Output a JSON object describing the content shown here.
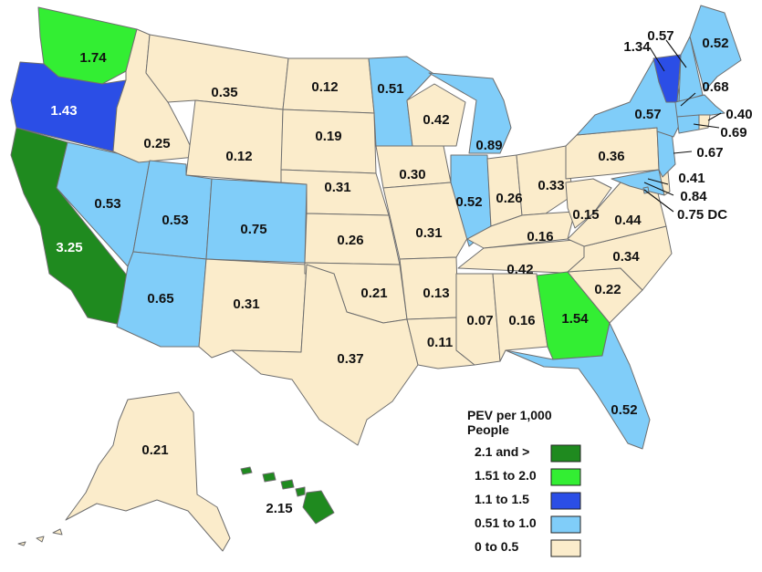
{
  "colors": {
    "ge_2_1": "#1f8a1f",
    "r151_200": "#33ee33",
    "r110_150": "#2b4ee6",
    "r051_100": "#80cdf9",
    "r000_050": "#fbeccb"
  },
  "legend": {
    "title_line1": "PEV per 1,000",
    "title_line2": "People",
    "items": [
      {
        "label": "2.1 and >",
        "color": "#1f8a1f"
      },
      {
        "label": "1.51 to 2.0",
        "color": "#33ee33"
      },
      {
        "label": "1.1 to 1.5",
        "color": "#2b4ee6"
      },
      {
        "label": "0.51 to 1.0",
        "color": "#80cdf9"
      },
      {
        "label": "0 to 0.5",
        "color": "#fbeccb"
      }
    ]
  },
  "states": {
    "WA": "1.74",
    "OR": "1.43",
    "CA": "3.25",
    "NV": "0.53",
    "ID": "0.25",
    "MT": "0.35",
    "WY": "0.12",
    "UT": "0.53",
    "AZ": "0.65",
    "CO": "0.75",
    "NM": "0.31",
    "ND": "0.12",
    "SD": "0.19",
    "NE": "0.31",
    "KS": "0.26",
    "OK": "0.21",
    "TX": "0.37",
    "MN": "0.51",
    "IA": "0.30",
    "MO": "0.31",
    "AR": "0.13",
    "LA": "0.11",
    "WI": "0.42",
    "IL": "0.52",
    "MI": "0.89",
    "IN": "0.26",
    "OH": "0.33",
    "KY": "0.16",
    "TN": "0.42",
    "MS": "0.07",
    "AL": "0.16",
    "GA": "1.54",
    "FL": "0.52",
    "SC": "0.22",
    "NC": "0.34",
    "VA": "0.44",
    "WV": "0.15",
    "PA": "0.36",
    "NY": "0.57",
    "VT": "1.34",
    "NH": "0.57",
    "ME": "0.52",
    "MA": "0.68",
    "RI": "0.40",
    "CT": "0.69",
    "NJ": "0.67",
    "DE": "0.41",
    "MD": "0.84",
    "DC": "0.75 DC",
    "AK": "0.21",
    "HI": "2.15"
  }
}
